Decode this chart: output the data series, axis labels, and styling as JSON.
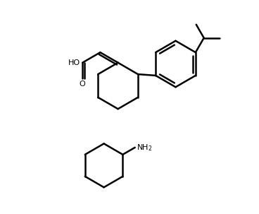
{
  "background_color": "#ffffff",
  "line_color": "#000000",
  "line_width": 1.8,
  "figure_width": 3.68,
  "figure_height": 3.03,
  "dpi": 100,
  "xlim": [
    0,
    10
  ],
  "ylim": [
    0,
    8.25
  ]
}
